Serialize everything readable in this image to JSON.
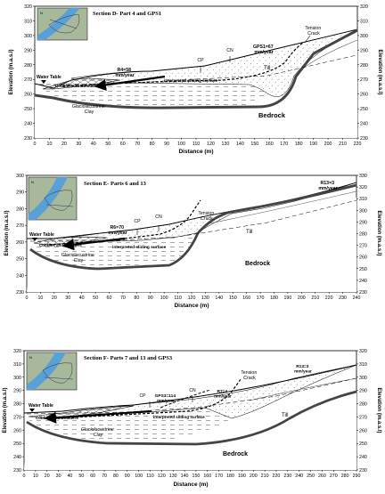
{
  "panels": [
    {
      "title": "Section D- Part 4 and GPS1",
      "xlabel": "Distance (m)",
      "ylabel_left": "Elevation (m.a.s.l)",
      "ylabel_right": "Elevation (m.a.s.l)",
      "x_ticks": [
        "0",
        "10",
        "20",
        "30",
        "40",
        "50",
        "60",
        "70",
        "80",
        "90",
        "100",
        "110",
        "120",
        "130",
        "140",
        "150",
        "160",
        "170",
        "180",
        "190",
        "200",
        "210",
        "220"
      ],
      "y_ticks_left": [
        "320",
        "310",
        "300",
        "290",
        "280",
        "270",
        "260",
        "250",
        "240",
        "230"
      ],
      "y_ticks_right": [
        "320",
        "310",
        "300",
        "290",
        "280",
        "270",
        "260",
        "250",
        "240",
        "230"
      ],
      "labels": {
        "water_table": "Water Table",
        "cobbles": "Cobbles and Boulders",
        "clay_line1": "Glaciolacustrine",
        "clay_line2": "Clay",
        "sliding": "interpreted sliding surface",
        "bedrock": "Bedrock",
        "till": "Till",
        "tension_line1": "Tension",
        "tension_line2": "Crack",
        "cp": "CP",
        "cn": "CN",
        "rate_a_line1": "R4=58",
        "rate_a_line2": "mm/year",
        "rate_b_line1": "GPS1=67",
        "rate_b_line2": "mm/year"
      }
    },
    {
      "title": "Section E- Parts 6 and 13",
      "xlabel": "Distance (m)",
      "ylabel_left": "Elevation (m.a.s.l)",
      "ylabel_right": "Elevation (m.a.s.l)",
      "x_ticks": [
        "0",
        "10",
        "20",
        "30",
        "40",
        "50",
        "60",
        "70",
        "80",
        "90",
        "100",
        "110",
        "120",
        "130",
        "140",
        "150",
        "160",
        "170",
        "180",
        "190",
        "200",
        "210",
        "220",
        "230",
        "240"
      ],
      "y_ticks_left": [
        "300",
        "290",
        "280",
        "270",
        "260",
        "250",
        "240",
        "230"
      ],
      "y_ticks_right": [
        "330",
        "320",
        "310",
        "300",
        "290",
        "280",
        "270",
        "260",
        "250",
        "240",
        "230"
      ],
      "labels": {
        "water_table": "Water Table",
        "cobbles": "Cobbles and Boulders",
        "clay_line1": "Glaciolacustrine",
        "clay_line2": "Clay",
        "sliding": "interpreted sliding surface",
        "bedrock": "Bedrock",
        "till": "Till",
        "tension_line1": "Tension",
        "tension_line2": "Crack",
        "cp": "CP",
        "cn": "CN",
        "rate_a_line1": "R6=70",
        "rate_a_line2": "mm/year",
        "rate_b_line1": "R13=3",
        "rate_b_line2": "mm/year"
      }
    },
    {
      "title": "Section F- Parts 7 and 13 and GPS3",
      "xlabel": "Distance (m)",
      "ylabel_left": "Elevation (m.a.s.l)",
      "ylabel_right": "Elevation (m.a.s.l)",
      "x_ticks": [
        "0",
        "10",
        "20",
        "30",
        "40",
        "50",
        "60",
        "70",
        "80",
        "90",
        "100",
        "110",
        "120",
        "130",
        "140",
        "150",
        "160",
        "170",
        "180",
        "190",
        "200",
        "210",
        "220",
        "230",
        "240",
        "250",
        "260",
        "270",
        "280",
        "290"
      ],
      "y_ticks_left": [
        "320",
        "310",
        "300",
        "290",
        "280",
        "270",
        "260",
        "250",
        "240",
        "230"
      ],
      "y_ticks_right": [
        "320",
        "310",
        "300",
        "290",
        "280",
        "270",
        "260",
        "250",
        "240",
        "230"
      ],
      "labels": {
        "water_table": "Water Table",
        "cobbles": "Cobbles and Boulders",
        "clay_line1": "Glaciolacustrine",
        "clay_line2": "Clay",
        "sliding": "interpreted sliding surface",
        "bedrock": "Bedrock",
        "till": "Till",
        "tension_line1": "Tension",
        "tension_line2": "Crack",
        "cp": "CP",
        "cn": "CN",
        "rate_a_line1": "GPS3=114",
        "rate_a_line2": "mm/year",
        "rate_b_line1": "R7=4",
        "rate_b_line2": "mm/year",
        "rate_c_line1": "R13=3",
        "rate_c_line2": "mm/year"
      }
    }
  ]
}
